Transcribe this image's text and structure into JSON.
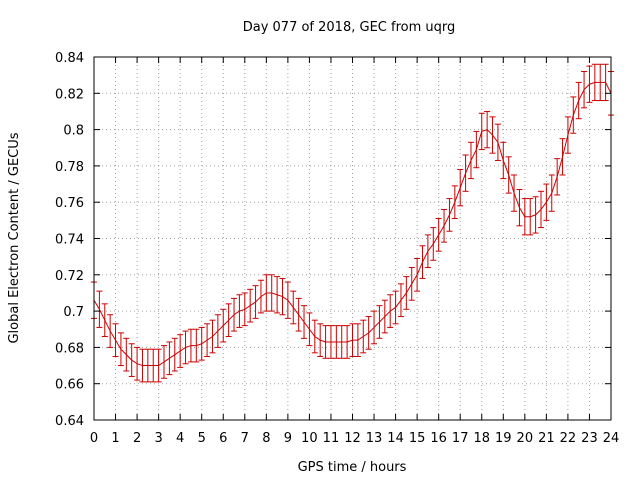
{
  "chart_data": {
    "type": "line",
    "title": "Day 077 of 2018, GEC from uqrg",
    "xlabel": "GPS time / hours",
    "ylabel": "Global Electron Content / GECUs",
    "xlim": [
      0,
      24
    ],
    "ylim": [
      0.64,
      0.84
    ],
    "xticks": [
      "0",
      "1",
      "2",
      "3",
      "4",
      "5",
      "6",
      "7",
      "8",
      "9",
      "10",
      "11",
      "12",
      "13",
      "14",
      "15",
      "16",
      "17",
      "18",
      "19",
      "20",
      "21",
      "22",
      "23",
      "24"
    ],
    "yticks": [
      "0.64",
      "0.66",
      "0.68",
      "0.7",
      "0.72",
      "0.74",
      "0.76",
      "0.78",
      "0.8",
      "0.82",
      "0.84"
    ],
    "grid": true,
    "error_bars": true,
    "color": "#cc0000",
    "series": [
      {
        "x": [
          0,
          0.25,
          0.5,
          0.75,
          1,
          1.25,
          1.5,
          1.75,
          2,
          2.25,
          2.5,
          2.75,
          3,
          3.25,
          3.5,
          3.75,
          4,
          4.25,
          4.5,
          4.75,
          5,
          5.25,
          5.5,
          5.75,
          6,
          6.25,
          6.5,
          6.75,
          7,
          7.25,
          7.5,
          7.75,
          8,
          8.25,
          8.5,
          8.75,
          9,
          9.25,
          9.5,
          9.75,
          10,
          10.25,
          10.5,
          10.75,
          11,
          11.25,
          11.5,
          11.75,
          12,
          12.25,
          12.5,
          12.75,
          13,
          13.25,
          13.5,
          13.75,
          14,
          14.25,
          14.5,
          14.75,
          15,
          15.25,
          15.5,
          15.75,
          16,
          16.25,
          16.5,
          16.75,
          17,
          17.25,
          17.5,
          17.75,
          18,
          18.25,
          18.5,
          18.75,
          19,
          19.25,
          19.5,
          19.75,
          20,
          20.25,
          20.5,
          20.75,
          21,
          21.25,
          21.5,
          21.75,
          22,
          22.25,
          22.5,
          22.75,
          23,
          23.25,
          23.5,
          23.75,
          24
        ],
        "y": [
          0.706,
          0.701,
          0.695,
          0.689,
          0.684,
          0.679,
          0.676,
          0.673,
          0.671,
          0.67,
          0.67,
          0.67,
          0.67,
          0.672,
          0.674,
          0.676,
          0.678,
          0.68,
          0.681,
          0.681,
          0.682,
          0.684,
          0.686,
          0.689,
          0.692,
          0.695,
          0.698,
          0.7,
          0.701,
          0.703,
          0.705,
          0.708,
          0.71,
          0.71,
          0.709,
          0.708,
          0.706,
          0.702,
          0.698,
          0.694,
          0.69,
          0.686,
          0.684,
          0.683,
          0.683,
          0.683,
          0.683,
          0.683,
          0.684,
          0.684,
          0.686,
          0.688,
          0.691,
          0.694,
          0.697,
          0.7,
          0.702,
          0.706,
          0.71,
          0.715,
          0.72,
          0.727,
          0.733,
          0.737,
          0.742,
          0.747,
          0.753,
          0.76,
          0.768,
          0.776,
          0.783,
          0.789,
          0.799,
          0.8,
          0.797,
          0.793,
          0.783,
          0.775,
          0.765,
          0.757,
          0.752,
          0.752,
          0.753,
          0.756,
          0.76,
          0.765,
          0.774,
          0.785,
          0.797,
          0.808,
          0.816,
          0.822,
          0.825,
          0.826,
          0.826,
          0.826,
          0.82
        ],
        "err": [
          0.01,
          0.01,
          0.009,
          0.009,
          0.009,
          0.009,
          0.009,
          0.009,
          0.009,
          0.009,
          0.009,
          0.009,
          0.009,
          0.009,
          0.009,
          0.009,
          0.009,
          0.009,
          0.009,
          0.009,
          0.009,
          0.009,
          0.009,
          0.009,
          0.009,
          0.009,
          0.009,
          0.009,
          0.009,
          0.009,
          0.009,
          0.009,
          0.01,
          0.01,
          0.01,
          0.01,
          0.01,
          0.009,
          0.009,
          0.009,
          0.009,
          0.009,
          0.009,
          0.009,
          0.009,
          0.009,
          0.009,
          0.009,
          0.009,
          0.009,
          0.009,
          0.009,
          0.009,
          0.009,
          0.009,
          0.009,
          0.009,
          0.009,
          0.009,
          0.009,
          0.009,
          0.009,
          0.009,
          0.009,
          0.009,
          0.009,
          0.009,
          0.009,
          0.01,
          0.01,
          0.01,
          0.01,
          0.01,
          0.01,
          0.01,
          0.01,
          0.01,
          0.01,
          0.01,
          0.01,
          0.01,
          0.01,
          0.01,
          0.01,
          0.01,
          0.01,
          0.01,
          0.01,
          0.01,
          0.01,
          0.01,
          0.01,
          0.01,
          0.01,
          0.01,
          0.01,
          0.012
        ]
      }
    ]
  }
}
